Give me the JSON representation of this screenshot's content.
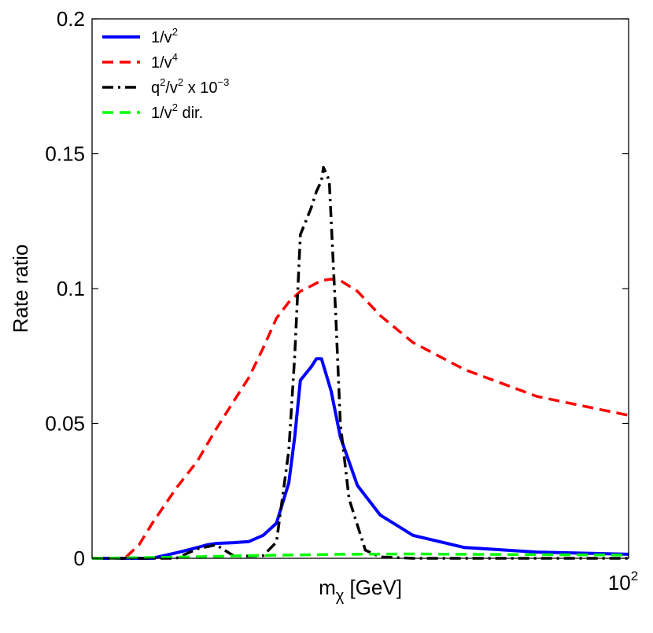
{
  "chart_data": {
    "type": "line",
    "xlabel_base": "m",
    "xlabel_sub": "χ",
    "xlabel_unit": " [GeV]",
    "ylabel": "Rate ratio",
    "x_scale": "log",
    "xlim": [
      5,
      100
    ],
    "ylim": [
      0,
      0.2
    ],
    "yticks": [
      0,
      0.05,
      0.1,
      0.15,
      0.2
    ],
    "ytick_labels": [
      "0",
      "0.05",
      "0.1",
      "0.15",
      "0.2"
    ],
    "xtick_base": "10",
    "xtick_exp": "2",
    "xtick_value": 100,
    "grid": false,
    "legend_position": "top-left",
    "series": [
      {
        "name": "1/v",
        "sup": "2",
        "suffix": "",
        "color": "#0000ff",
        "style": "solid",
        "x": [
          5,
          7,
          8,
          8.5,
          9,
          9.5,
          10,
          11,
          12,
          13,
          14,
          15,
          15.5,
          16,
          17,
          17.5,
          18,
          19,
          20,
          22,
          25,
          30,
          40,
          60,
          100
        ],
        "y": [
          0,
          0,
          0.002,
          0.003,
          0.004,
          0.005,
          0.0055,
          0.0058,
          0.0062,
          0.0085,
          0.013,
          0.028,
          0.045,
          0.066,
          0.071,
          0.074,
          0.074,
          0.062,
          0.045,
          0.027,
          0.016,
          0.0085,
          0.004,
          0.0023,
          0.0015
        ]
      },
      {
        "name": "1/v",
        "sup": "4",
        "suffix": "",
        "color": "#ff0000",
        "style": "dashed",
        "x": [
          5,
          6,
          6.5,
          7,
          8,
          9,
          10,
          11,
          12,
          13,
          14,
          15,
          16,
          17,
          18,
          19,
          20,
          22,
          25,
          30,
          40,
          60,
          100
        ],
        "y": [
          0,
          0,
          0.005,
          0.013,
          0.026,
          0.036,
          0.048,
          0.058,
          0.067,
          0.078,
          0.089,
          0.095,
          0.099,
          0.101,
          0.103,
          0.1035,
          0.103,
          0.099,
          0.09,
          0.08,
          0.07,
          0.06,
          0.053
        ]
      },
      {
        "name": "q",
        "sup": "2",
        "name2": "/v",
        "sup2": "2",
        "suffix": " x 10",
        "sup3": "−3",
        "color": "#000000",
        "style": "dashdot",
        "x": [
          5,
          8,
          9,
          10,
          11,
          12,
          13,
          14,
          15,
          15.5,
          16,
          17,
          17.5,
          18,
          18.2,
          18.8,
          19.5,
          20,
          21,
          23,
          25,
          30,
          40,
          60,
          100
        ],
        "y": [
          0,
          0,
          0.0035,
          0.005,
          0.001,
          0.0008,
          0.001,
          0.006,
          0.04,
          0.075,
          0.12,
          0.13,
          0.136,
          0.14,
          0.145,
          0.14,
          0.09,
          0.05,
          0.022,
          0.003,
          0.0005,
          0,
          0,
          0,
          0
        ]
      },
      {
        "name": "1/v",
        "sup": "2",
        "suffix": " dir.",
        "color": "#00ff00",
        "style": "dashed",
        "x": [
          5,
          8,
          12,
          20,
          30,
          50,
          100
        ],
        "y": [
          0,
          0.0004,
          0.001,
          0.0015,
          0.0016,
          0.0014,
          0.0012
        ]
      }
    ]
  }
}
